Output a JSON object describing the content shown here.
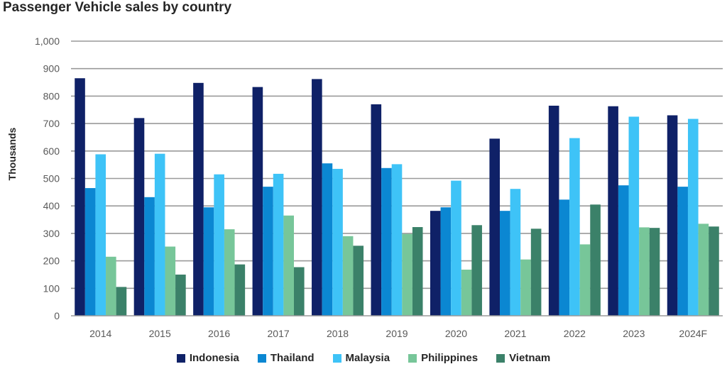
{
  "chart_data": {
    "type": "bar",
    "title": "Passenger Vehicle sales by country",
    "ylabel": "Thousands",
    "xlabel": "",
    "ylim": [
      0,
      1000
    ],
    "yticks": [
      0,
      100,
      200,
      300,
      400,
      500,
      600,
      700,
      800,
      900,
      1000
    ],
    "ytick_labels": [
      "0",
      "100",
      "200",
      "300",
      "400",
      "500",
      "600",
      "700",
      "800",
      "900",
      "1,000"
    ],
    "grid": true,
    "legend_position": "bottom",
    "categories": [
      "2014",
      "2015",
      "2016",
      "2017",
      "2018",
      "2019",
      "2020",
      "2021",
      "2022",
      "2023",
      "2024F"
    ],
    "series": [
      {
        "name": "Indonesia",
        "color": "#0f2167",
        "values": [
          865,
          720,
          848,
          833,
          862,
          770,
          382,
          645,
          765,
          763,
          730
        ]
      },
      {
        "name": "Thailand",
        "color": "#0b87d2",
        "values": [
          465,
          432,
          395,
          470,
          555,
          538,
          395,
          382,
          423,
          475,
          470
        ]
      },
      {
        "name": "Malaysia",
        "color": "#3ec3f7",
        "values": [
          588,
          590,
          515,
          517,
          535,
          552,
          492,
          462,
          647,
          725,
          717
        ]
      },
      {
        "name": "Philippines",
        "color": "#77c699",
        "values": [
          215,
          252,
          315,
          365,
          290,
          298,
          168,
          205,
          260,
          322,
          335
        ]
      },
      {
        "name": "Vietnam",
        "color": "#3b8169",
        "values": [
          105,
          150,
          187,
          177,
          255,
          323,
          330,
          317,
          405,
          320,
          325
        ]
      }
    ]
  }
}
